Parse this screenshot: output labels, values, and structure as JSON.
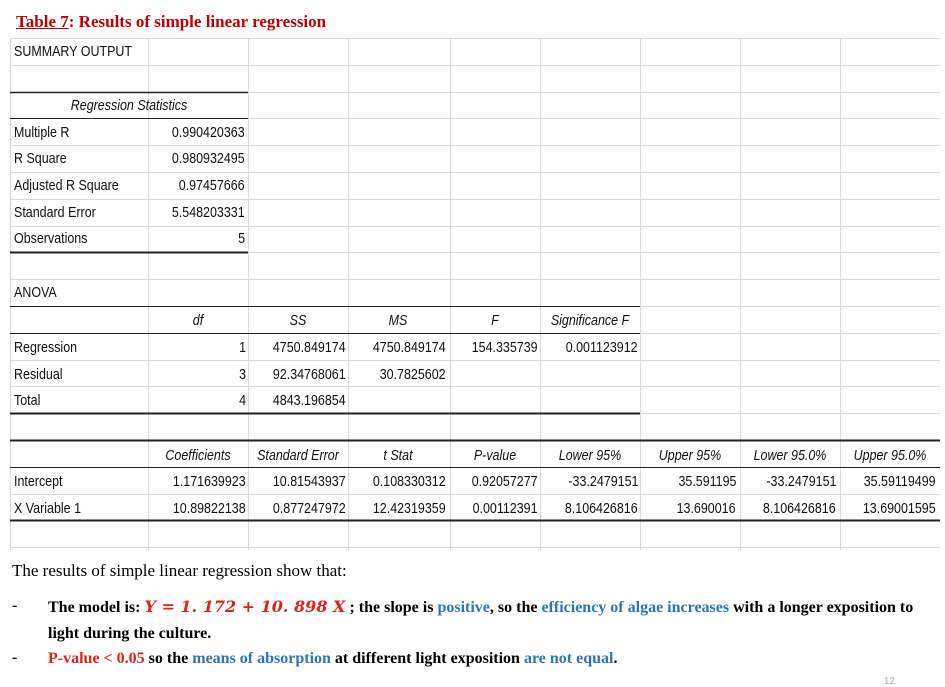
{
  "caption": {
    "label": "Table  7",
    "rest": ": Results of simple  linear  regression"
  },
  "summary_title": "SUMMARY OUTPUT",
  "regression_statistics": {
    "header": "Regression Statistics",
    "rows": [
      {
        "label": "Multiple R",
        "value": "0.990420363"
      },
      {
        "label": "R Square",
        "value": "0.980932495"
      },
      {
        "label": "Adjusted R Square",
        "value": "0.97457666"
      },
      {
        "label": "Standard Error",
        "value": "5.548203331"
      },
      {
        "label": "Observations",
        "value": "5"
      }
    ]
  },
  "anova": {
    "title": "ANOVA",
    "headers": [
      "df",
      "SS",
      "MS",
      "F",
      "Significance F"
    ],
    "rows": [
      {
        "label": "Regression",
        "df": "1",
        "ss": "4750.849174",
        "ms": "4750.849174",
        "f": "154.335739",
        "sig": "0.001123912"
      },
      {
        "label": "Residual",
        "df": "3",
        "ss": "92.34768061",
        "ms": "30.7825602",
        "f": "",
        "sig": ""
      },
      {
        "label": "Total",
        "df": "4",
        "ss": "4843.196854",
        "ms": "",
        "f": "",
        "sig": ""
      }
    ]
  },
  "coefficients": {
    "headers": [
      "Coefficients",
      "Standard Error",
      "t Stat",
      "P-value",
      "Lower 95%",
      "Upper 95%",
      "Lower 95.0%",
      "Upper 95.0%"
    ],
    "rows": [
      {
        "label": "Intercept",
        "values": [
          "1.171639923",
          "10.81543937",
          "0.108330312",
          "0.92057277",
          "-33.2479151",
          "35.591195",
          "-33.2479151",
          "35.59119499"
        ]
      },
      {
        "label": "X Variable 1",
        "values": [
          "10.89822138",
          "0.877247972",
          "12.42319359",
          "0.00112391",
          "8.106426816",
          "13.690016",
          "8.106426816",
          "13.69001595"
        ]
      }
    ]
  },
  "text": {
    "intro": "The results of simple linear regression show that:",
    "bullet_mark": "-",
    "b1_a": "The model is: ",
    "b1_model": "Y = 1. 172 + 10. 898 X",
    "b1_b": " ; the slope is ",
    "b1_positive": "positive",
    "b1_c": ", so the ",
    "b1_eff": "efficiency of algae increases",
    "b1_d": " with a longer  exposition  to light  during   the culture.",
    "b2_p": "P-value < 0.05",
    "b2_a": " so the ",
    "b2_means": "means  of absorption",
    "b2_b": "   at different light  exposition  ",
    "b2_ne": "are not equal",
    "b2_c": "."
  },
  "page_number": "12",
  "colors": {
    "title_red": "#c00000",
    "red": "#e0201b",
    "blue": "#2e75b6",
    "grid": "#d9d9d9"
  }
}
